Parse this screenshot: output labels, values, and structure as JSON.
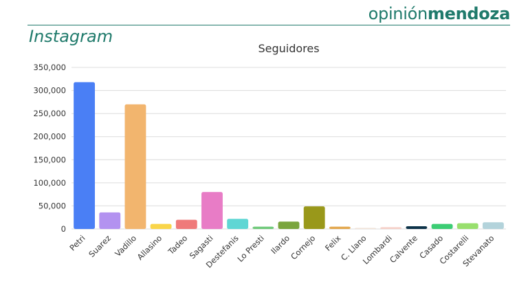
{
  "brand": {
    "light": "opinión",
    "bold": "mendoza",
    "color": "#1f7a6b"
  },
  "section_title": "Instagram",
  "chart_data": {
    "type": "bar",
    "title": "Seguidores",
    "xlabel": "",
    "ylabel": "",
    "ylim": [
      0,
      350000
    ],
    "y_ticks": [
      0,
      50000,
      100000,
      150000,
      200000,
      250000,
      300000,
      350000
    ],
    "y_tick_labels": [
      "0",
      "50,000",
      "100,000",
      "150,000",
      "200,000",
      "250,000",
      "300,000",
      "350,000"
    ],
    "grid": true,
    "categories": [
      "Petri",
      "Suarez",
      "Vadillo",
      "Allasino",
      "Tadeo",
      "Sagasti",
      "Destefanis",
      "Lo Presti",
      "Ilardo",
      "Cornejo",
      "Felix",
      "C. Llano",
      "Lombardi",
      "Calvente",
      "Casado",
      "Costarelli",
      "Stevanato"
    ],
    "values": [
      318000,
      36000,
      270000,
      11000,
      20000,
      80000,
      22000,
      5000,
      16000,
      49000,
      5000,
      2500,
      4000,
      6000,
      11000,
      12500,
      14500
    ],
    "colors": [
      "#4a7ff5",
      "#b392f0",
      "#f2b56e",
      "#f9d54a",
      "#ef7a7a",
      "#e87cc6",
      "#5fd6d4",
      "#6ec979",
      "#7aa53e",
      "#99981a",
      "#e3a74d",
      "#f0e3d9",
      "#f5cfc8",
      "#0d3349",
      "#3ccd74",
      "#98df6d",
      "#b3d3db"
    ]
  }
}
